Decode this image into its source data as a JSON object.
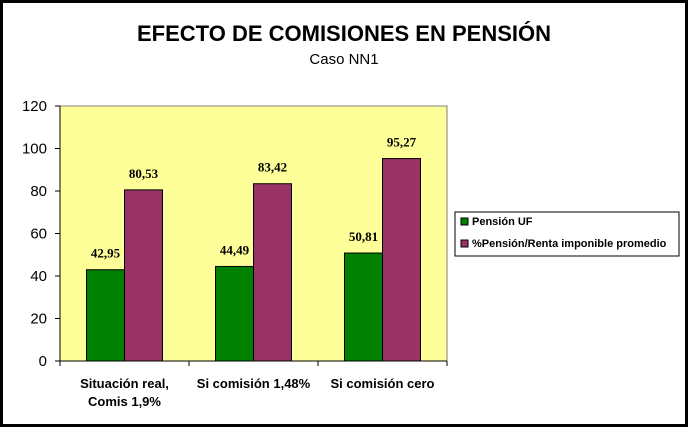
{
  "chart_data": {
    "type": "bar",
    "title": "EFECTO DE COMISIONES EN PENSIÓN",
    "subtitle": "Caso NN1",
    "categories": [
      [
        "Situación real,",
        "Comis 1,9%"
      ],
      [
        "Si comisión 1,48%"
      ],
      [
        "Si comisión cero"
      ]
    ],
    "series": [
      {
        "name": "Pensión UF",
        "color": "#008000",
        "values": [
          42.95,
          44.49,
          50.81
        ],
        "labels": [
          "42,95",
          "44,49",
          "50,81"
        ]
      },
      {
        "name": "%Pensión/Renta imponible promedio",
        "color": "#993366",
        "values": [
          80.53,
          83.42,
          95.27
        ],
        "labels": [
          "80,53",
          "83,42",
          "95,27"
        ]
      }
    ],
    "ylim": [
      0,
      120
    ],
    "yticks": [
      "0",
      "20",
      "40",
      "60",
      "80",
      "100",
      "120"
    ],
    "plot_background": "#ffff99",
    "grid": false,
    "legend_position": "right"
  }
}
